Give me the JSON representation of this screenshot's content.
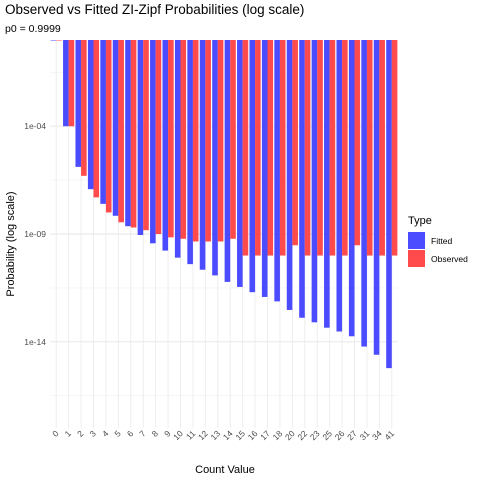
{
  "chart_data": {
    "type": "bar",
    "title": "Observed vs Fitted ZI-Zipf Probabilities (log scale)",
    "subtitle": "p0 = 0.9999",
    "xlabel": "Count Value",
    "ylabel": "Probability (log scale)",
    "y_scale": "log10",
    "y_ticks": [
      {
        "value": 0.0001,
        "label": "1e-04"
      },
      {
        "value": 1e-09,
        "label": "1e-09"
      },
      {
        "value": 1e-14,
        "label": "1e-14"
      }
    ],
    "ylim": [
      1e-18,
      1
    ],
    "grid": true,
    "legend": {
      "title": "Type",
      "position": "right"
    },
    "categories": [
      "0",
      "1",
      "2",
      "3",
      "4",
      "5",
      "6",
      "7",
      "8",
      "9",
      "10",
      "11",
      "12",
      "13",
      "14",
      "15",
      "16",
      "17",
      "18",
      "20",
      "22",
      "23",
      "25",
      "26",
      "27",
      "31",
      "34",
      "41"
    ],
    "series": [
      {
        "name": "Fitted",
        "color": "#4B4BFF",
        "values": [
          0.9999,
          0.0001,
          1.3e-06,
          1.2e-07,
          2.5e-08,
          7e-09,
          2.3e-09,
          9e-10,
          3.7e-10,
          1.7e-10,
          8e-11,
          4e-11,
          2.2e-11,
          1.2e-11,
          6e-12,
          3.5e-12,
          2e-12,
          1.2e-12,
          7.5e-13,
          3e-13,
          1.3e-13,
          8e-14,
          4.5e-14,
          3e-14,
          1.8e-14,
          6e-15,
          2.5e-15,
          6e-16
        ]
      },
      {
        "name": "Observed",
        "color": "#FF4B4B",
        "values": [
          0.9999,
          0.0001,
          5e-07,
          5e-08,
          1e-08,
          3.5e-09,
          2e-09,
          1.5e-09,
          1e-09,
          7e-10,
          6e-10,
          4.5e-10,
          4.5e-10,
          4.5e-10,
          6e-10,
          1e-10,
          1e-10,
          1e-10,
          1e-10,
          3e-10,
          1e-10,
          1e-10,
          1e-10,
          1e-10,
          3e-10,
          1e-10,
          1e-10,
          1e-10
        ]
      }
    ]
  }
}
